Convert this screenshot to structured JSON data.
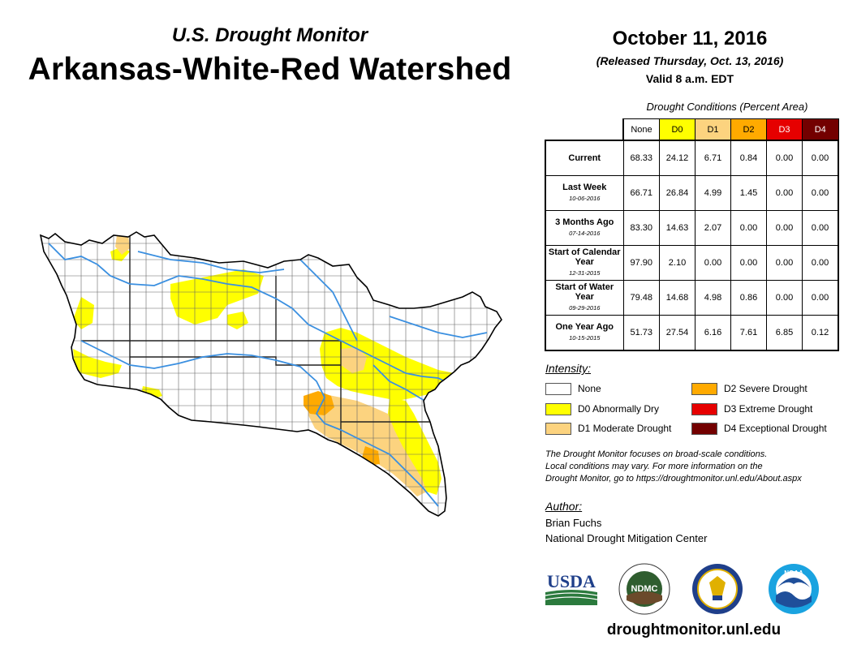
{
  "header": {
    "subtitle": "U.S. Drought Monitor",
    "title": "Arkansas-White-Red Watershed",
    "date": "October 11, 2016",
    "released": "(Released Thursday, Oct. 13, 2016)",
    "valid": "Valid 8 a.m. EDT"
  },
  "table": {
    "caption": "Drought Conditions (Percent Area)",
    "columns": [
      "None",
      "D0",
      "D1",
      "D2",
      "D3",
      "D4"
    ],
    "column_colors": [
      "#ffffff",
      "#ffff00",
      "#fcd37f",
      "#ffaa00",
      "#e60000",
      "#730000"
    ],
    "rows": [
      {
        "label": "Current",
        "date": "",
        "values": [
          "68.33",
          "24.12",
          "6.71",
          "0.84",
          "0.00",
          "0.00"
        ]
      },
      {
        "label": "Last Week",
        "date": "10-06-2016",
        "values": [
          "66.71",
          "26.84",
          "4.99",
          "1.45",
          "0.00",
          "0.00"
        ]
      },
      {
        "label": "3 Months Ago",
        "date": "07-14-2016",
        "values": [
          "83.30",
          "14.63",
          "2.07",
          "0.00",
          "0.00",
          "0.00"
        ]
      },
      {
        "label": "Start of Calendar Year",
        "date": "12-31-2015",
        "values": [
          "97.90",
          "2.10",
          "0.00",
          "0.00",
          "0.00",
          "0.00"
        ]
      },
      {
        "label": "Start of Water Year",
        "date": "09-29-2016",
        "values": [
          "79.48",
          "14.68",
          "4.98",
          "0.86",
          "0.00",
          "0.00"
        ]
      },
      {
        "label": "One Year Ago",
        "date": "10-15-2015",
        "values": [
          "51.73",
          "27.54",
          "6.16",
          "7.61",
          "6.85",
          "0.12"
        ]
      }
    ]
  },
  "legend": {
    "title": "Intensity:",
    "items": [
      {
        "label": "None",
        "color": "#ffffff"
      },
      {
        "label": "D0 Abnormally Dry",
        "color": "#ffff00"
      },
      {
        "label": "D1 Moderate Drought",
        "color": "#fcd37f"
      },
      {
        "label": "D2 Severe Drought",
        "color": "#ffaa00"
      },
      {
        "label": "D3 Extreme Drought",
        "color": "#e60000"
      },
      {
        "label": "D4 Exceptional Drought",
        "color": "#730000"
      }
    ]
  },
  "note": {
    "line1": "The Drought Monitor focuses on broad-scale conditions.",
    "line2": "Local conditions may vary. For more information on the",
    "line3": "Drought Monitor, go to https://droughtmonitor.unl.edu/About.aspx"
  },
  "author": {
    "title": "Author:",
    "name": "Brian Fuchs",
    "org": "National Drought Mitigation Center"
  },
  "logos": {
    "usda": "USDA",
    "ndmc": "NDMC",
    "noaa": "NOAA"
  },
  "website": "droughtmonitor.unl.edu",
  "map": {
    "river_color": "#3a8fe0",
    "border_color": "#555555"
  }
}
